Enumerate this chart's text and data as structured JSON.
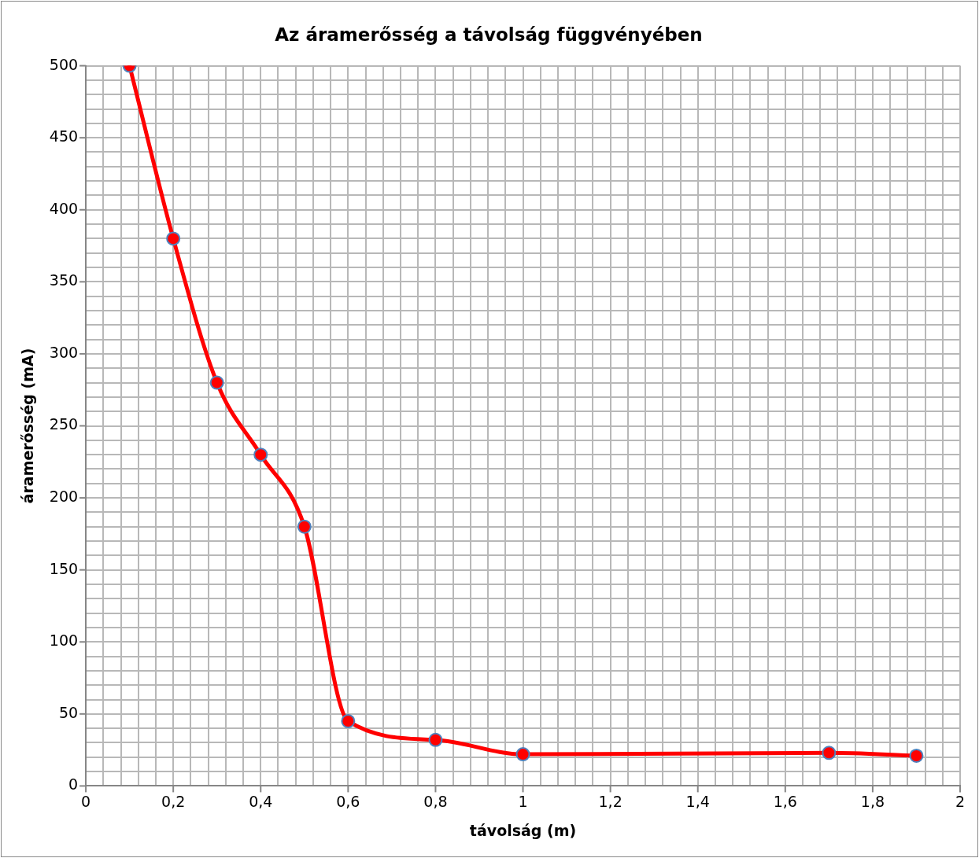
{
  "chart_data": {
    "type": "line",
    "title": "Az áramerősség a távolság függvényében",
    "xlabel": "távolság (m)",
    "ylabel": "áramerősség (mA)",
    "x": [
      0.1,
      0.2,
      0.3,
      0.4,
      0.5,
      0.6,
      0.8,
      1,
      1.7,
      1.9
    ],
    "series": [
      {
        "color": "#ff0000",
        "values": [
          500,
          380,
          280,
          230,
          180,
          45,
          32,
          22,
          23,
          21
        ]
      }
    ],
    "xlim": [
      0,
      2
    ],
    "xticks": [
      0,
      {
        "value": 0.04,
        "label": null
      },
      {
        "value": 0.08,
        "label": null
      },
      {
        "value": 0.12,
        "label": null
      },
      {
        "value": 0.16,
        "label": null
      },
      {
        "value": 0.2,
        "label": "0,2"
      },
      {
        "value": 0.24,
        "label": null
      },
      {
        "value": 0.28,
        "label": null
      },
      {
        "value": 0.32,
        "label": null
      },
      {
        "value": 0.36,
        "label": null
      },
      {
        "value": 0.4,
        "label": "0,4"
      },
      {
        "value": 0.44,
        "label": null
      },
      {
        "value": 0.48,
        "label": null
      },
      {
        "value": 0.52,
        "label": null
      },
      {
        "value": 0.56,
        "label": null
      },
      {
        "value": 0.6,
        "label": "0,6"
      },
      {
        "value": 0.64,
        "label": null
      },
      {
        "value": 0.68,
        "label": null
      },
      {
        "value": 0.72,
        "label": null
      },
      {
        "value": 0.76,
        "label": null
      },
      {
        "value": 0.8,
        "label": "0,8"
      },
      {
        "value": 0.84,
        "label": null
      },
      {
        "value": 0.88,
        "label": null
      },
      {
        "value": 0.92,
        "label": null
      },
      {
        "value": 0.96,
        "label": null
      },
      1,
      {
        "value": 1.04,
        "label": null
      },
      {
        "value": 1.08,
        "label": null
      },
      {
        "value": 1.12,
        "label": null
      },
      {
        "value": 1.16,
        "label": null
      },
      {
        "value": 1.2,
        "label": "1,2"
      },
      {
        "value": 1.24,
        "label": null
      },
      {
        "value": 1.28,
        "label": null
      },
      {
        "value": 1.32,
        "label": null
      },
      {
        "value": 1.36,
        "label": null
      },
      {
        "value": 1.4,
        "label": "1,4"
      },
      {
        "value": 1.44,
        "label": null
      },
      {
        "value": 1.48,
        "label": null
      },
      {
        "value": 1.52,
        "label": null
      },
      {
        "value": 1.56,
        "label": null
      },
      {
        "value": 1.6,
        "label": "1,6"
      },
      {
        "value": 1.64,
        "label": null
      },
      {
        "value": 1.68,
        "label": null
      },
      {
        "value": 1.72,
        "label": null
      },
      {
        "value": 1.76,
        "label": null
      },
      {
        "value": 1.8,
        "label": "1,8"
      },
      {
        "value": 1.84,
        "label": null
      },
      {
        "value": 1.88,
        "label": null
      },
      {
        "value": 1.92,
        "label": null
      },
      {
        "value": 1.96,
        "label": null
      },
      2
    ],
    "ylim": [
      0,
      500
    ],
    "yticks": [
      0,
      {
        "value": 10,
        "label": null
      },
      {
        "value": 20,
        "label": null
      },
      {
        "value": 30,
        "label": null
      },
      {
        "value": 40,
        "label": null
      },
      50,
      {
        "value": 60,
        "label": null
      },
      {
        "value": 70,
        "label": null
      },
      {
        "value": 80,
        "label": null
      },
      {
        "value": 90,
        "label": null
      },
      100,
      {
        "value": 110,
        "label": null
      },
      {
        "value": 120,
        "label": null
      },
      {
        "value": 130,
        "label": null
      },
      {
        "value": 140,
        "label": null
      },
      150,
      {
        "value": 160,
        "label": null
      },
      {
        "value": 170,
        "label": null
      },
      {
        "value": 180,
        "label": null
      },
      {
        "value": 190,
        "label": null
      },
      200,
      {
        "value": 210,
        "label": null
      },
      {
        "value": 220,
        "label": null
      },
      {
        "value": 230,
        "label": null
      },
      {
        "value": 240,
        "label": null
      },
      250,
      {
        "value": 260,
        "label": null
      },
      {
        "value": 270,
        "label": null
      },
      {
        "value": 280,
        "label": null
      },
      {
        "value": 290,
        "label": null
      },
      300,
      {
        "value": 310,
        "label": null
      },
      {
        "value": 320,
        "label": null
      },
      {
        "value": 330,
        "label": null
      },
      {
        "value": 340,
        "label": null
      },
      350,
      {
        "value": 360,
        "label": null
      },
      {
        "value": 370,
        "label": null
      },
      {
        "value": 380,
        "label": null
      },
      {
        "value": 390,
        "label": null
      },
      400,
      {
        "value": 410,
        "label": null
      },
      {
        "value": 420,
        "label": null
      },
      {
        "value": 430,
        "label": null
      },
      {
        "value": 440,
        "label": null
      },
      450,
      {
        "value": 460,
        "label": null
      },
      {
        "value": 470,
        "label": null
      },
      {
        "value": 480,
        "label": null
      },
      {
        "value": 490,
        "label": null
      },
      500
    ],
    "grid": true,
    "legend": false,
    "marker": "circle",
    "line_style": "solid"
  }
}
